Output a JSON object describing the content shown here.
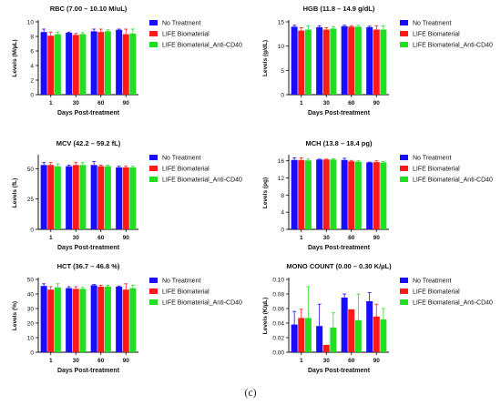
{
  "figure": {
    "caption": "(c)"
  },
  "colors": {
    "No Treatment": "#1a0dff",
    "LIFE Biomaterial": "#ff1a1a",
    "LIFE Biomaterial_Anti-CD40": "#22dd22"
  },
  "chart_data": [
    {
      "type": "bar",
      "title": "RBC (7.00 – 10.10 M/uL)",
      "xlabel": "Days Post-treatment",
      "ylabel": "Levels (M/µL)",
      "categories": [
        "1",
        "30",
        "60",
        "90"
      ],
      "ylim": [
        0,
        10
      ],
      "yticks": [
        "0",
        "2",
        "4",
        "6",
        "8",
        "10"
      ],
      "yticks_values": [
        0,
        2,
        4,
        6,
        8,
        10
      ],
      "legend": "right",
      "series": [
        {
          "name": "No Treatment",
          "values": [
            8.6,
            8.5,
            8.7,
            8.9
          ],
          "errors": [
            0.4,
            0.1,
            0.3,
            0.1
          ]
        },
        {
          "name": "LIFE Biomaterial",
          "values": [
            8.1,
            8.2,
            8.6,
            8.3
          ],
          "errors": [
            0.5,
            0.2,
            0.4,
            0.7
          ]
        },
        {
          "name": "LIFE Biomaterial_Anti-CD40",
          "values": [
            8.3,
            8.3,
            8.7,
            8.4
          ],
          "errors": [
            0.3,
            0.2,
            0.2,
            0.6
          ]
        }
      ]
    },
    {
      "type": "bar",
      "title": "HGB (11.8 – 14.9 g/dL)",
      "xlabel": "Days Post-treatment",
      "ylabel": "Levels (g/dL)",
      "categories": [
        "1",
        "30",
        "60",
        "90"
      ],
      "ylim": [
        0,
        15
      ],
      "yticks": [
        "0",
        "5",
        "10",
        "15"
      ],
      "yticks_values": [
        0,
        5,
        10,
        15
      ],
      "legend": "right",
      "series": [
        {
          "name": "No Treatment",
          "values": [
            14.0,
            13.9,
            14.1,
            13.9
          ],
          "errors": [
            0.3,
            0.3,
            0.2,
            0.2
          ]
        },
        {
          "name": "LIFE Biomaterial",
          "values": [
            13.2,
            13.4,
            14.0,
            13.4
          ],
          "errors": [
            0.6,
            0.4,
            0.2,
            0.8
          ]
        },
        {
          "name": "LIFE Biomaterial_Anti-CD40",
          "values": [
            13.4,
            13.6,
            14.0,
            13.4
          ],
          "errors": [
            0.8,
            0.4,
            0.3,
            0.8
          ]
        }
      ]
    },
    {
      "type": "bar",
      "title": "MCV (42.2 – 59.2 fL)",
      "xlabel": "Days Post-treatment",
      "ylabel": "Levels (fL)",
      "categories": [
        "1",
        "30",
        "60",
        "90"
      ],
      "ylim": [
        0,
        60
      ],
      "yticks": [
        "0",
        "25",
        "50"
      ],
      "yticks_values": [
        0,
        25,
        50
      ],
      "legend": "right",
      "series": [
        {
          "name": "No Treatment",
          "values": [
            53,
            52,
            53,
            51
          ],
          "errors": [
            2,
            1,
            3,
            1
          ]
        },
        {
          "name": "LIFE Biomaterial",
          "values": [
            53,
            53,
            52,
            51
          ],
          "errors": [
            2,
            2,
            1,
            1
          ]
        },
        {
          "name": "LIFE Biomaterial_Anti-CD40",
          "values": [
            52,
            53,
            52,
            51
          ],
          "errors": [
            2,
            2,
            1,
            1
          ]
        }
      ]
    },
    {
      "type": "bar",
      "title": "MCH (13.8 – 18.4 pg)",
      "xlabel": "Days Post-treatment",
      "ylabel": "Levels (pg)",
      "categories": [
        "1",
        "30",
        "60",
        "90"
      ],
      "ylim": [
        0,
        17
      ],
      "yticks": [
        "0",
        "4",
        "8",
        "12",
        "16"
      ],
      "yticks_values": [
        0,
        4,
        8,
        12,
        16
      ],
      "legend": "right",
      "series": [
        {
          "name": "No Treatment",
          "values": [
            16.2,
            16.3,
            16.2,
            15.6
          ],
          "errors": [
            0.5,
            0.1,
            0.4,
            0.1
          ]
        },
        {
          "name": "LIFE Biomaterial",
          "values": [
            16.2,
            16.3,
            15.9,
            15.7
          ],
          "errors": [
            0.5,
            0.1,
            0.2,
            0.3
          ]
        },
        {
          "name": "LIFE Biomaterial_Anti-CD40",
          "values": [
            16.1,
            16.3,
            15.8,
            15.6
          ],
          "errors": [
            0.3,
            0.2,
            0.2,
            0.2
          ]
        }
      ]
    },
    {
      "type": "bar",
      "title": "HCT (36.7 –  46.8 %)",
      "xlabel": "Days Post-treatment",
      "ylabel": "Levels (%)",
      "categories": [
        "1",
        "30",
        "60",
        "90"
      ],
      "ylim": [
        0,
        50
      ],
      "yticks": [
        "0",
        "10",
        "20",
        "30",
        "40",
        "50"
      ],
      "yticks_values": [
        0,
        10,
        20,
        30,
        40,
        50
      ],
      "legend": "right",
      "series": [
        {
          "name": "No Treatment",
          "values": [
            45.5,
            44.0,
            46.0,
            45.0
          ],
          "errors": [
            1.5,
            1.0,
            0.5,
            0.5
          ]
        },
        {
          "name": "LIFE Biomaterial",
          "values": [
            43.0,
            43.5,
            45.0,
            43.0
          ],
          "errors": [
            2.0,
            1.5,
            1.0,
            4.0
          ]
        },
        {
          "name": "LIFE Biomaterial_Anti-CD40",
          "values": [
            44.5,
            43.5,
            45.0,
            44.0
          ],
          "errors": [
            2.5,
            1.0,
            1.0,
            2.0
          ]
        }
      ]
    },
    {
      "type": "bar",
      "title": "MONO COUNT (0.00 – 0.30 K/µL)",
      "xlabel": "Days Post-treatment",
      "ylabel": "Levels (K/µL)",
      "categories": [
        "1",
        "30",
        "60",
        "90"
      ],
      "ylim": [
        0,
        0.1
      ],
      "yticks": [
        "0.00",
        "0.02",
        "0.04",
        "0.06",
        "0.08",
        "0.10"
      ],
      "yticks_values": [
        0,
        0.02,
        0.04,
        0.06,
        0.08,
        0.1
      ],
      "legend": "right",
      "series": [
        {
          "name": "No Treatment",
          "values": [
            0.038,
            0.036,
            0.075,
            0.07
          ],
          "errors": [
            0.018,
            0.03,
            0.005,
            0.012
          ]
        },
        {
          "name": "LIFE Biomaterial",
          "values": [
            0.047,
            0.01,
            0.059,
            0.049
          ],
          "errors": [
            0.012,
            0.0,
            0.0,
            0.017
          ]
        },
        {
          "name": "LIFE Biomaterial_Anti-CD40",
          "values": [
            0.047,
            0.034,
            0.044,
            0.045
          ],
          "errors": [
            0.043,
            0.02,
            0.036,
            0.015
          ]
        }
      ]
    }
  ]
}
